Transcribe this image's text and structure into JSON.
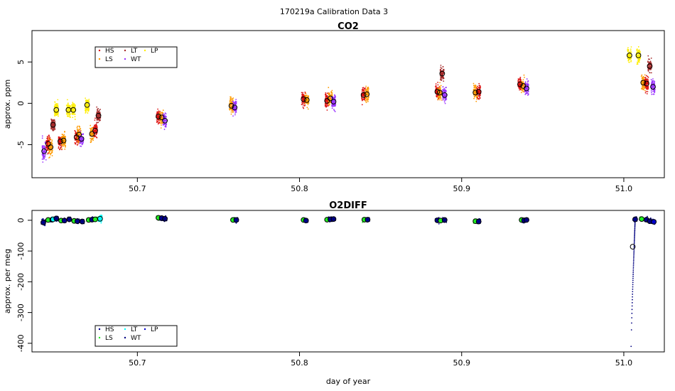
{
  "page_title": "170219a   Calibration Data 3",
  "chart_data": [
    {
      "type": "scatter",
      "title": "CO2",
      "xlabel": "",
      "ylabel": "approx. ppm",
      "xlim": [
        50.635,
        51.025
      ],
      "ylim": [
        -9.0,
        8.8
      ],
      "xticks": [
        50.7,
        50.8,
        50.9,
        51.0
      ],
      "xtick_labels": [
        "50.7",
        "50.8",
        "50.9",
        "51.0"
      ],
      "yticks": [
        5,
        0,
        -5
      ],
      "ytick_labels": [
        "5",
        "0",
        "-5"
      ],
      "legend": {
        "position": "top-left",
        "entries": [
          "HS",
          "LT",
          "LP",
          "LS",
          "WT"
        ]
      },
      "series_colors": {
        "HS": "#dd1111",
        "LS": "#ff9a00",
        "LT": "#a52a2a",
        "WT": "#9933ff",
        "LP": "#ffee00"
      },
      "clusters": [
        {
          "series": "WT",
          "x": 50.6425,
          "mean": -5.8,
          "spread": 1.3
        },
        {
          "series": "HS",
          "x": 50.645,
          "mean": -4.9,
          "spread": 1.2
        },
        {
          "series": "LS",
          "x": 50.6465,
          "mean": -5.3,
          "spread": 1.4
        },
        {
          "series": "LT",
          "x": 50.648,
          "mean": -2.6,
          "spread": 0.9
        },
        {
          "series": "LP",
          "x": 50.65,
          "mean": -0.8,
          "spread": 1.1
        },
        {
          "series": "HS",
          "x": 50.6525,
          "mean": -4.6,
          "spread": 1.1
        },
        {
          "series": "LS",
          "x": 50.6545,
          "mean": -4.5,
          "spread": 1.2
        },
        {
          "series": "LP",
          "x": 50.6575,
          "mean": -0.8,
          "spread": 1.0
        },
        {
          "series": "LP",
          "x": 50.6605,
          "mean": -0.8,
          "spread": 1.0
        },
        {
          "series": "HS",
          "x": 50.6625,
          "mean": -4.1,
          "spread": 1.0
        },
        {
          "series": "LS",
          "x": 50.664,
          "mean": -3.8,
          "spread": 1.1
        },
        {
          "series": "WT",
          "x": 50.6655,
          "mean": -4.3,
          "spread": 0.9
        },
        {
          "series": "LP",
          "x": 50.669,
          "mean": -0.2,
          "spread": 1.0
        },
        {
          "series": "LS",
          "x": 50.672,
          "mean": -3.7,
          "spread": 1.0
        },
        {
          "series": "HS",
          "x": 50.674,
          "mean": -3.3,
          "spread": 1.0
        },
        {
          "series": "LT",
          "x": 50.676,
          "mean": -1.5,
          "spread": 0.9
        },
        {
          "series": "HS",
          "x": 50.713,
          "mean": -1.6,
          "spread": 1.0
        },
        {
          "series": "LS",
          "x": 50.715,
          "mean": -1.7,
          "spread": 1.0
        },
        {
          "series": "WT",
          "x": 50.717,
          "mean": -2.1,
          "spread": 1.0
        },
        {
          "series": "LS",
          "x": 50.758,
          "mean": -0.3,
          "spread": 1.1
        },
        {
          "series": "WT",
          "x": 50.76,
          "mean": -0.5,
          "spread": 0.9
        },
        {
          "series": "HS",
          "x": 50.8025,
          "mean": 0.5,
          "spread": 0.9
        },
        {
          "series": "LS",
          "x": 50.8045,
          "mean": 0.4,
          "spread": 0.9
        },
        {
          "series": "HS",
          "x": 50.817,
          "mean": 0.3,
          "spread": 1.0
        },
        {
          "series": "LS",
          "x": 50.819,
          "mean": 0.6,
          "spread": 1.0
        },
        {
          "series": "WT",
          "x": 50.821,
          "mean": 0.2,
          "spread": 1.1
        },
        {
          "series": "HS",
          "x": 50.8395,
          "mean": 1.0,
          "spread": 1.0
        },
        {
          "series": "LS",
          "x": 50.8415,
          "mean": 1.1,
          "spread": 1.0
        },
        {
          "series": "HS",
          "x": 50.885,
          "mean": 1.4,
          "spread": 1.0
        },
        {
          "series": "LS",
          "x": 50.8865,
          "mean": 1.3,
          "spread": 1.0
        },
        {
          "series": "LT",
          "x": 50.888,
          "mean": 3.6,
          "spread": 1.0
        },
        {
          "series": "WT",
          "x": 50.8895,
          "mean": 1.0,
          "spread": 1.0
        },
        {
          "series": "LS",
          "x": 50.9085,
          "mean": 1.3,
          "spread": 1.1
        },
        {
          "series": "HS",
          "x": 50.9105,
          "mean": 1.4,
          "spread": 1.0
        },
        {
          "series": "HS",
          "x": 50.936,
          "mean": 2.3,
          "spread": 0.9
        },
        {
          "series": "LS",
          "x": 50.938,
          "mean": 2.1,
          "spread": 0.9
        },
        {
          "series": "WT",
          "x": 50.94,
          "mean": 1.8,
          "spread": 1.0
        },
        {
          "series": "LP",
          "x": 51.0035,
          "mean": 5.8,
          "spread": 1.0
        },
        {
          "series": "LP",
          "x": 51.009,
          "mean": 5.8,
          "spread": 1.0
        },
        {
          "series": "LS",
          "x": 51.012,
          "mean": 2.5,
          "spread": 1.0
        },
        {
          "series": "HS",
          "x": 51.014,
          "mean": 2.4,
          "spread": 1.0
        },
        {
          "series": "LT",
          "x": 51.016,
          "mean": 4.5,
          "spread": 1.0
        },
        {
          "series": "WT",
          "x": 51.018,
          "mean": 2.0,
          "spread": 1.0
        }
      ]
    },
    {
      "type": "scatter",
      "title": "O2DIFF",
      "xlabel": "day of year",
      "ylabel": "approx. per meg",
      "xlim": [
        50.635,
        51.025
      ],
      "ylim": [
        -428,
        32
      ],
      "xticks": [
        50.7,
        50.8,
        50.9,
        51.0
      ],
      "xtick_labels": [
        "50.7",
        "50.8",
        "50.9",
        "51.0"
      ],
      "yticks": [
        0,
        -100,
        -200,
        -300,
        -400
      ],
      "ytick_labels": [
        "0",
        "-100",
        "-200",
        "-300",
        "-400"
      ],
      "legend": {
        "position": "bottom-left",
        "entries": [
          "HS",
          "LT",
          "LP",
          "LS",
          "WT"
        ]
      },
      "series_colors": {
        "HS": "#00008b",
        "LS": "#22ee22",
        "LT": "#00ffff",
        "WT": "#000080",
        "LP": "#0000cd"
      },
      "clusters": [
        {
          "series": "HS",
          "x": 50.642,
          "mean": -7,
          "spread": 10
        },
        {
          "series": "LS",
          "x": 50.645,
          "mean": 1,
          "spread": 6
        },
        {
          "series": "HS",
          "x": 50.6475,
          "mean": 2,
          "spread": 8
        },
        {
          "series": "LT",
          "x": 50.648,
          "mean": 3,
          "spread": 8
        },
        {
          "series": "WT",
          "x": 50.65,
          "mean": 6,
          "spread": 8
        },
        {
          "series": "LS",
          "x": 50.653,
          "mean": -1,
          "spread": 6
        },
        {
          "series": "HS",
          "x": 50.655,
          "mean": -1,
          "spread": 8
        },
        {
          "series": "WT",
          "x": 50.658,
          "mean": 3,
          "spread": 8
        },
        {
          "series": "LS",
          "x": 50.661,
          "mean": -2,
          "spread": 6
        },
        {
          "series": "HS",
          "x": 50.663,
          "mean": -3,
          "spread": 8
        },
        {
          "series": "WT",
          "x": 50.666,
          "mean": -4,
          "spread": 8
        },
        {
          "series": "LS",
          "x": 50.67,
          "mean": 1,
          "spread": 6
        },
        {
          "series": "HS",
          "x": 50.672,
          "mean": 2,
          "spread": 8
        },
        {
          "series": "LS",
          "x": 50.674,
          "mean": 3,
          "spread": 6
        },
        {
          "series": "LT",
          "x": 50.677,
          "mean": 5,
          "spread": 16
        },
        {
          "series": "LS",
          "x": 50.713,
          "mean": 8,
          "spread": 6
        },
        {
          "series": "HS",
          "x": 50.715,
          "mean": 7,
          "spread": 8
        },
        {
          "series": "WT",
          "x": 50.717,
          "mean": 5,
          "spread": 8
        },
        {
          "series": "LS",
          "x": 50.759,
          "mean": 1,
          "spread": 6
        },
        {
          "series": "HS",
          "x": 50.761,
          "mean": 1,
          "spread": 8
        },
        {
          "series": "LS",
          "x": 50.8025,
          "mean": 1,
          "spread": 6
        },
        {
          "series": "HS",
          "x": 50.804,
          "mean": -1,
          "spread": 8
        },
        {
          "series": "LS",
          "x": 50.817,
          "mean": 2,
          "spread": 6
        },
        {
          "series": "HS",
          "x": 50.819,
          "mean": 3,
          "spread": 8
        },
        {
          "series": "WT",
          "x": 50.821,
          "mean": 4,
          "spread": 8
        },
        {
          "series": "LS",
          "x": 50.84,
          "mean": 2,
          "spread": 6
        },
        {
          "series": "HS",
          "x": 50.842,
          "mean": 2,
          "spread": 8
        },
        {
          "series": "HS",
          "x": 50.885,
          "mean": 0,
          "spread": 8
        },
        {
          "series": "LS",
          "x": 50.887,
          "mean": -1,
          "spread": 6
        },
        {
          "series": "WT",
          "x": 50.8895,
          "mean": 1,
          "spread": 8
        },
        {
          "series": "LS",
          "x": 50.9085,
          "mean": -3,
          "spread": 6
        },
        {
          "series": "HS",
          "x": 50.9105,
          "mean": -4,
          "spread": 8
        },
        {
          "series": "LS",
          "x": 50.937,
          "mean": 1,
          "spread": 6
        },
        {
          "series": "HS",
          "x": 50.9385,
          "mean": 0,
          "spread": 8
        },
        {
          "series": "WT",
          "x": 50.94,
          "mean": 1,
          "spread": 8
        },
        {
          "series": "HS",
          "x": 51.007,
          "mean": 3,
          "spread": 8
        },
        {
          "series": "LS",
          "x": 51.011,
          "mean": 4,
          "spread": 6
        },
        {
          "series": "HS",
          "x": 51.014,
          "mean": 2,
          "spread": 8
        },
        {
          "series": "WT",
          "x": 51.016,
          "mean": -3,
          "spread": 8
        },
        {
          "series": "LP",
          "x": 51.0185,
          "mean": -5,
          "spread": 8
        }
      ],
      "drift_trace": {
        "series": "WT",
        "x_start": 51.0045,
        "x_end": 51.007,
        "y_start": -410,
        "y_end": 2,
        "hollow_marker": {
          "x": 51.0055,
          "y": -86
        }
      }
    }
  ]
}
